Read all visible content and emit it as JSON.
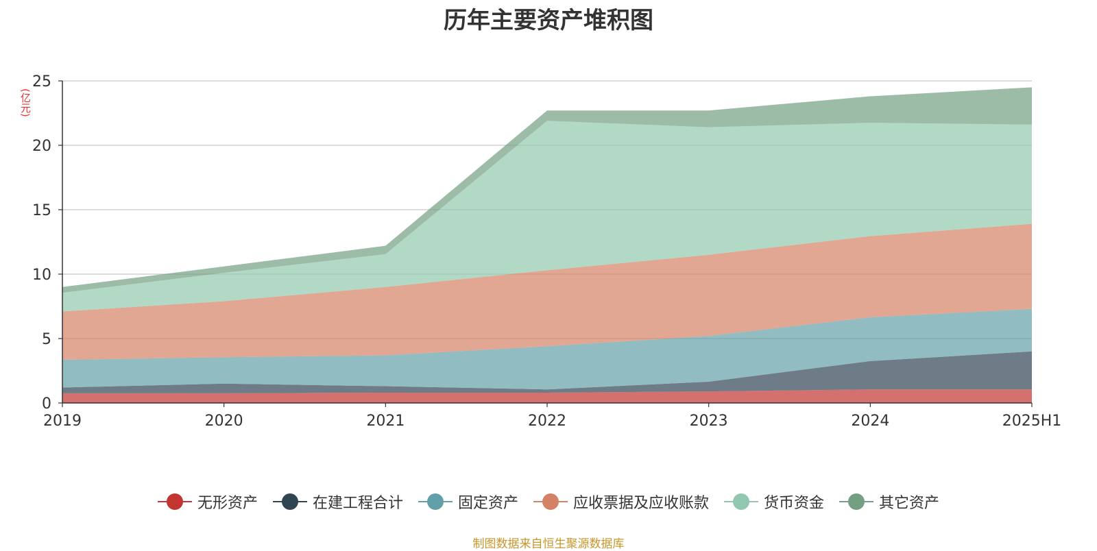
{
  "chart_data": {
    "type": "area",
    "stacked": true,
    "title": "历年主要资产堆积图",
    "y_unit_label": "(亿元)",
    "x": [
      "2019",
      "2020",
      "2021",
      "2022",
      "2023",
      "2024",
      "2025H1"
    ],
    "ylim": [
      0,
      25
    ],
    "yticks": [
      0,
      5,
      10,
      15,
      20,
      25
    ],
    "grid": true,
    "legend_position": "bottom",
    "series": [
      {
        "name": "无形资产",
        "color": "#c23531",
        "values": [
          0.75,
          0.75,
          0.8,
          0.8,
          0.9,
          1.05,
          1.05
        ]
      },
      {
        "name": "在建工程合计",
        "color": "#2f4554",
        "values": [
          0.45,
          0.75,
          0.5,
          0.25,
          0.75,
          2.2,
          2.95
        ]
      },
      {
        "name": "固定资产",
        "color": "#61a0a8",
        "values": [
          2.15,
          2.05,
          2.4,
          3.35,
          3.55,
          3.4,
          3.3
        ]
      },
      {
        "name": "应收票据及应收账款",
        "color": "#d48265",
        "values": [
          3.75,
          4.35,
          5.3,
          5.9,
          6.3,
          6.3,
          6.6
        ]
      },
      {
        "name": "货币资金",
        "color": "#91c7ae",
        "values": [
          1.45,
          2.2,
          2.55,
          11.6,
          9.9,
          8.8,
          7.7
        ]
      },
      {
        "name": "其它资产",
        "color": "#749f83",
        "values": [
          0.45,
          0.5,
          0.65,
          0.8,
          1.3,
          2.05,
          2.9
        ]
      }
    ]
  },
  "source_note": "制图数据来自恒生聚源数据库"
}
